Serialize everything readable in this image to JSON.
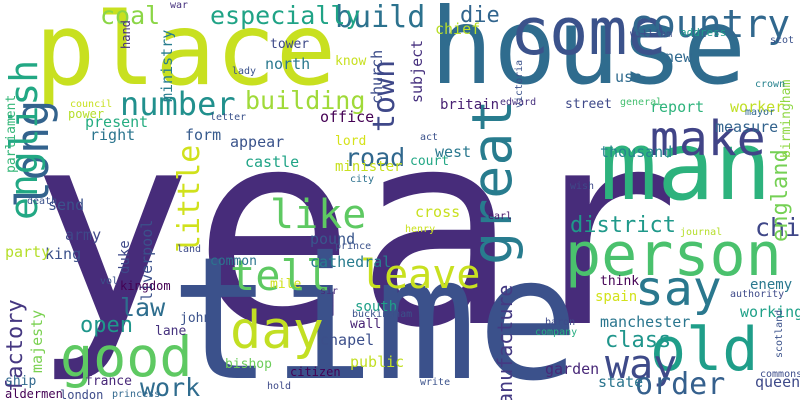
{
  "words": [
    {
      "text": "year",
      "color": "#472c7a",
      "v": false
    },
    {
      "text": "time",
      "color": "#3b518b",
      "v": false
    },
    {
      "text": "house",
      "color": "#2f6c8e",
      "v": false
    },
    {
      "text": "place",
      "color": "#c8e020",
      "v": false
    },
    {
      "text": "man",
      "color": "#2db27d",
      "v": false
    },
    {
      "text": "person",
      "color": "#4ac16d",
      "v": false
    },
    {
      "text": "come",
      "color": "#3b528b",
      "v": false
    },
    {
      "text": "good",
      "color": "#5ec962",
      "v": false
    },
    {
      "text": "day",
      "color": "#c2df23",
      "v": false
    },
    {
      "text": "old",
      "color": "#1f9e89",
      "v": false
    },
    {
      "text": "make",
      "color": "#414487",
      "v": false
    },
    {
      "text": "long",
      "color": "#33638d",
      "v": true
    },
    {
      "text": "great",
      "color": "#287c8e",
      "v": true
    },
    {
      "text": "say",
      "color": "#2a788e",
      "v": false
    },
    {
      "text": "country",
      "color": "#31688e",
      "v": false
    },
    {
      "text": "english",
      "color": "#22a884",
      "v": true
    },
    {
      "text": "tell",
      "color": "#5ec962",
      "v": false
    },
    {
      "text": "leave",
      "color": "#c8e020",
      "v": false
    },
    {
      "text": "like",
      "color": "#5ec962",
      "v": false
    },
    {
      "text": "way",
      "color": "#3e4a89",
      "v": false
    },
    {
      "text": "little",
      "color": "#d0e11c",
      "v": true
    },
    {
      "text": "number",
      "color": "#21908d",
      "v": false
    },
    {
      "text": "order",
      "color": "#35608d",
      "v": false
    },
    {
      "text": "town",
      "color": "#3f4889",
      "v": true
    },
    {
      "text": "build",
      "color": "#2c728e",
      "v": false
    },
    {
      "text": "coal",
      "color": "#8bd646",
      "v": false
    },
    {
      "text": "especially",
      "color": "#20a386",
      "v": false
    },
    {
      "text": "building",
      "color": "#a0da39",
      "v": false
    },
    {
      "text": "child",
      "color": "#3f4788",
      "v": false
    },
    {
      "text": "district",
      "color": "#1f998a",
      "v": false
    },
    {
      "text": "work",
      "color": "#2f6c8e",
      "v": false
    },
    {
      "text": "road",
      "color": "#31688e",
      "v": false
    },
    {
      "text": "law",
      "color": "#2e6e8e",
      "v": false
    },
    {
      "text": "open",
      "color": "#1f968b",
      "v": false
    },
    {
      "text": "class",
      "color": "#1f958b",
      "v": false
    },
    {
      "text": "die",
      "color": "#32658e",
      "v": false
    },
    {
      "text": "factory",
      "color": "#453781",
      "v": true
    },
    {
      "text": "manufacture",
      "color": "#443a83",
      "v": true
    },
    {
      "text": "england",
      "color": "#75d054",
      "v": true
    },
    {
      "text": "manchester",
      "color": "#2a768e",
      "v": false
    },
    {
      "text": "report",
      "color": "#2eb37c",
      "v": false
    },
    {
      "text": "worker",
      "color": "#c0df25",
      "v": false
    },
    {
      "text": "thousand",
      "color": "#25848e",
      "v": false
    },
    {
      "text": "working",
      "color": "#1fa188",
      "v": false
    },
    {
      "text": "measure",
      "color": "#33638d",
      "v": false
    },
    {
      "text": "street",
      "color": "#3e4989",
      "v": false
    },
    {
      "text": "castle",
      "color": "#20a486",
      "v": false
    },
    {
      "text": "appear",
      "color": "#3a538b",
      "v": false
    },
    {
      "text": "present",
      "color": "#26ad81",
      "v": false
    },
    {
      "text": "right",
      "color": "#2b758e",
      "v": false
    },
    {
      "text": "form",
      "color": "#375b8d",
      "v": false
    },
    {
      "text": "office",
      "color": "#440154",
      "v": false
    },
    {
      "text": "west",
      "color": "#2a788e",
      "v": false
    },
    {
      "text": "court",
      "color": "#22a785",
      "v": false
    },
    {
      "text": "ministry",
      "color": "#287d8e",
      "v": true
    },
    {
      "text": "subject",
      "color": "#46307e",
      "v": true
    },
    {
      "text": "church",
      "color": "#3d4d8a",
      "v": true
    },
    {
      "text": "north",
      "color": "#29788e",
      "v": false
    },
    {
      "text": "tower",
      "color": "#3e4a89",
      "v": false
    },
    {
      "text": "britain",
      "color": "#482173",
      "v": false
    },
    {
      "text": "chief",
      "color": "#b8de29",
      "v": false
    },
    {
      "text": "new",
      "color": "#30698e",
      "v": false
    },
    {
      "text": "use",
      "color": "#2f6b8e",
      "v": false
    },
    {
      "text": "liverpool",
      "color": "#3b518b",
      "v": true
    },
    {
      "text": "duke",
      "color": "#3e4989",
      "v": true
    },
    {
      "text": "cathedral",
      "color": "#287c8e",
      "v": false
    },
    {
      "text": "cross",
      "color": "#c8e020",
      "v": false
    },
    {
      "text": "pound",
      "color": "#39568c",
      "v": false
    },
    {
      "text": "king",
      "color": "#3b518b",
      "v": false
    },
    {
      "text": "army",
      "color": "#3f4889",
      "v": false
    },
    {
      "text": "send",
      "color": "#3b528b",
      "v": false
    },
    {
      "text": "party",
      "color": "#b5de2b",
      "v": false
    },
    {
      "text": "majesty",
      "color": "#7ad151",
      "v": true
    },
    {
      "text": "kingdom",
      "color": "#440154",
      "v": false
    },
    {
      "text": "common",
      "color": "#2b748e",
      "v": false
    },
    {
      "text": "lane",
      "color": "#46327e",
      "v": false
    },
    {
      "text": "john",
      "color": "#3b528b",
      "v": false
    },
    {
      "text": "wall",
      "color": "#482475",
      "v": false
    },
    {
      "text": "chapel",
      "color": "#3c4f8a",
      "v": false
    },
    {
      "text": "south",
      "color": "#1fa088",
      "v": false
    },
    {
      "text": "bishop",
      "color": "#6ccd5a",
      "v": false
    },
    {
      "text": "public",
      "color": "#c2df23",
      "v": false
    },
    {
      "text": "garden",
      "color": "#482878",
      "v": false
    },
    {
      "text": "state",
      "color": "#2b758e",
      "v": false
    },
    {
      "text": "queen",
      "color": "#3e4a89",
      "v": false
    },
    {
      "text": "france",
      "color": "#482878",
      "v": false
    },
    {
      "text": "ship",
      "color": "#31688e",
      "v": false
    },
    {
      "text": "aldermen",
      "color": "#440154",
      "v": false
    },
    {
      "text": "london",
      "color": "#3e4c8a",
      "v": false
    },
    {
      "text": "citizen",
      "color": "#440154",
      "v": false
    },
    {
      "text": "enemy",
      "color": "#2a788e",
      "v": false
    },
    {
      "text": "spain",
      "color": "#d2e21b",
      "v": false
    },
    {
      "text": "think",
      "color": "#440154",
      "v": false
    },
    {
      "text": "mile",
      "color": "#d0e11c",
      "v": false
    },
    {
      "text": "minister",
      "color": "#c8e020",
      "v": false
    },
    {
      "text": "lord",
      "color": "#d5e21a",
      "v": false
    },
    {
      "text": "parliament",
      "color": "#35b779",
      "v": true
    },
    {
      "text": "power",
      "color": "#b5de2b",
      "v": false
    },
    {
      "text": "hand",
      "color": "#46307e",
      "v": true
    },
    {
      "text": "know",
      "color": "#c8e020",
      "v": false
    },
    {
      "text": "birmingham",
      "color": "#8fd744",
      "v": true
    },
    {
      "text": "mayor",
      "color": "#30698e",
      "v": false
    },
    {
      "text": "general",
      "color": "#44bf70",
      "v": false
    },
    {
      "text": "edward",
      "color": "#46307e",
      "v": false
    },
    {
      "text": "address",
      "color": "#1f9a8a",
      "v": false
    },
    {
      "text": "crown",
      "color": "#26828e",
      "v": false
    },
    {
      "text": "act",
      "color": "#3b528b",
      "v": false
    },
    {
      "text": "city",
      "color": "#2c718e",
      "v": false
    },
    {
      "text": "earl",
      "color": "#48186a",
      "v": false
    },
    {
      "text": "prince",
      "color": "#3b528b",
      "v": false
    },
    {
      "text": "sir",
      "color": "#472d7b",
      "v": false
    },
    {
      "text": "henry",
      "color": "#cae11f",
      "v": false
    },
    {
      "text": "baron",
      "color": "#3e4a89",
      "v": false
    },
    {
      "text": "company",
      "color": "#27ad81",
      "v": false
    },
    {
      "text": "authority",
      "color": "#3e4a89",
      "v": false
    },
    {
      "text": "commons",
      "color": "#3d4d8a",
      "v": false
    },
    {
      "text": "council",
      "color": "#c8e020",
      "v": false
    },
    {
      "text": "letter",
      "color": "#3b528b",
      "v": false
    },
    {
      "text": "william",
      "color": "#3e4c8a",
      "v": false
    },
    {
      "text": "scot",
      "color": "#3b528b",
      "v": false
    },
    {
      "text": "war",
      "color": "#46327e",
      "v": false
    },
    {
      "text": "vol",
      "color": "#3b528b",
      "v": false
    },
    {
      "text": "journal",
      "color": "#b5de2b",
      "v": false
    },
    {
      "text": "land",
      "color": "#3e4c8a",
      "v": false
    },
    {
      "text": "buckingham",
      "color": "#3b528b",
      "v": false
    },
    {
      "text": "write",
      "color": "#3b528b",
      "v": false
    },
    {
      "text": "hold",
      "color": "#3e4a89",
      "v": false
    },
    {
      "text": "princess",
      "color": "#31688e",
      "v": false
    },
    {
      "text": "scotland",
      "color": "#3b528b",
      "v": true
    },
    {
      "text": "death",
      "color": "#3b528b",
      "v": false
    },
    {
      "text": "wish",
      "color": "#3e4a89",
      "v": false
    },
    {
      "text": "lady",
      "color": "#3b528b",
      "v": false
    },
    {
      "text": "victoria",
      "color": "#3b528b",
      "v": true
    }
  ]
}
